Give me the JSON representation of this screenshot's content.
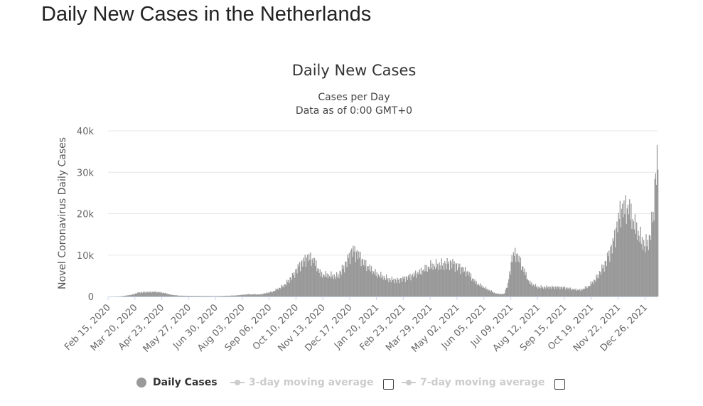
{
  "page": {
    "title": "Daily New Cases in the Netherlands"
  },
  "colors": {
    "bar": "#999999",
    "grid": "#e6e6e6",
    "axis": "#ccd6eb",
    "text": "#333333",
    "muted": "#666666"
  },
  "legend": {
    "daily": "Daily Cases",
    "ma3": "3-day moving average",
    "ma7": "7-day moving average"
  },
  "chart_data": {
    "type": "bar",
    "title": "Daily New Cases",
    "subtitle": [
      "Cases per Day",
      "Data as of 0:00 GMT+0"
    ],
    "xlabel": "",
    "ylabel": "Novel Coronavirus Daily Cases",
    "ylim": [
      0,
      40000
    ],
    "yticks": [
      0,
      10000,
      20000,
      30000,
      40000
    ],
    "ytick_labels": [
      "0",
      "10k",
      "20k",
      "30k",
      "40k"
    ],
    "start_date": "2020-02-15",
    "end_date": "2022-01-11",
    "xtick_labels": [
      "Feb 15, 2020",
      "Mar 20, 2020",
      "Apr 23, 2020",
      "May 27, 2020",
      "Jun 30, 2020",
      "Aug 03, 2020",
      "Sep 06, 2020",
      "Oct 10, 2020",
      "Nov 13, 2020",
      "Dec 17, 2020",
      "Jan 20, 2021",
      "Feb 23, 2021",
      "Mar 29, 2021",
      "May 02, 2021",
      "Jun 05, 2021",
      "Jul 09, 2021",
      "Aug 12, 2021",
      "Sep 15, 2021",
      "Oct 19, 2021",
      "Nov 22, 2021",
      "Dec 26, 2021"
    ],
    "series": [
      {
        "name": "Daily Cases",
        "keypoints": [
          [
            "2020-02-15",
            0
          ],
          [
            "2020-03-01",
            50
          ],
          [
            "2020-03-15",
            400
          ],
          [
            "2020-03-25",
            1000
          ],
          [
            "2020-04-05",
            1100
          ],
          [
            "2020-04-15",
            1150
          ],
          [
            "2020-04-25",
            900
          ],
          [
            "2020-05-05",
            400
          ],
          [
            "2020-05-15",
            200
          ],
          [
            "2020-06-01",
            150
          ],
          [
            "2020-07-01",
            100
          ],
          [
            "2020-07-25",
            250
          ],
          [
            "2020-08-10",
            550
          ],
          [
            "2020-08-25",
            500
          ],
          [
            "2020-09-10",
            1200
          ],
          [
            "2020-09-25",
            2800
          ],
          [
            "2020-10-05",
            5000
          ],
          [
            "2020-10-15",
            8000
          ],
          [
            "2020-10-25",
            9800
          ],
          [
            "2020-11-01",
            9000
          ],
          [
            "2020-11-10",
            5500
          ],
          [
            "2020-11-22",
            5200
          ],
          [
            "2020-12-01",
            5000
          ],
          [
            "2020-12-10",
            7500
          ],
          [
            "2020-12-20",
            11500
          ],
          [
            "2020-12-27",
            10500
          ],
          [
            "2021-01-05",
            8000
          ],
          [
            "2021-01-20",
            5500
          ],
          [
            "2021-02-05",
            4200
          ],
          [
            "2021-02-15",
            4000
          ],
          [
            "2021-03-01",
            4800
          ],
          [
            "2021-03-15",
            6000
          ],
          [
            "2021-03-29",
            7600
          ],
          [
            "2021-04-10",
            7800
          ],
          [
            "2021-04-25",
            8300
          ],
          [
            "2021-05-05",
            7200
          ],
          [
            "2021-05-15",
            6000
          ],
          [
            "2021-05-25",
            3500
          ],
          [
            "2021-06-05",
            2200
          ],
          [
            "2021-06-20",
            700
          ],
          [
            "2021-06-30",
            600
          ],
          [
            "2021-07-05",
            3000
          ],
          [
            "2021-07-10",
            9500
          ],
          [
            "2021-07-15",
            10800
          ],
          [
            "2021-07-22",
            8000
          ],
          [
            "2021-08-01",
            3500
          ],
          [
            "2021-08-12",
            2300
          ],
          [
            "2021-09-01",
            2300
          ],
          [
            "2021-09-15",
            2200
          ],
          [
            "2021-09-25",
            1800
          ],
          [
            "2021-10-05",
            1600
          ],
          [
            "2021-10-15",
            2500
          ],
          [
            "2021-10-25",
            4500
          ],
          [
            "2021-11-05",
            8000
          ],
          [
            "2021-11-15",
            13000
          ],
          [
            "2021-11-25",
            21500
          ],
          [
            "2021-12-05",
            22000
          ],
          [
            "2021-12-12",
            18000
          ],
          [
            "2021-12-20",
            14500
          ],
          [
            "2021-12-26",
            12500
          ],
          [
            "2021-12-31",
            14000
          ],
          [
            "2022-01-05",
            20000
          ],
          [
            "2022-01-09",
            33000
          ],
          [
            "2022-01-11",
            31500
          ]
        ]
      }
    ]
  }
}
